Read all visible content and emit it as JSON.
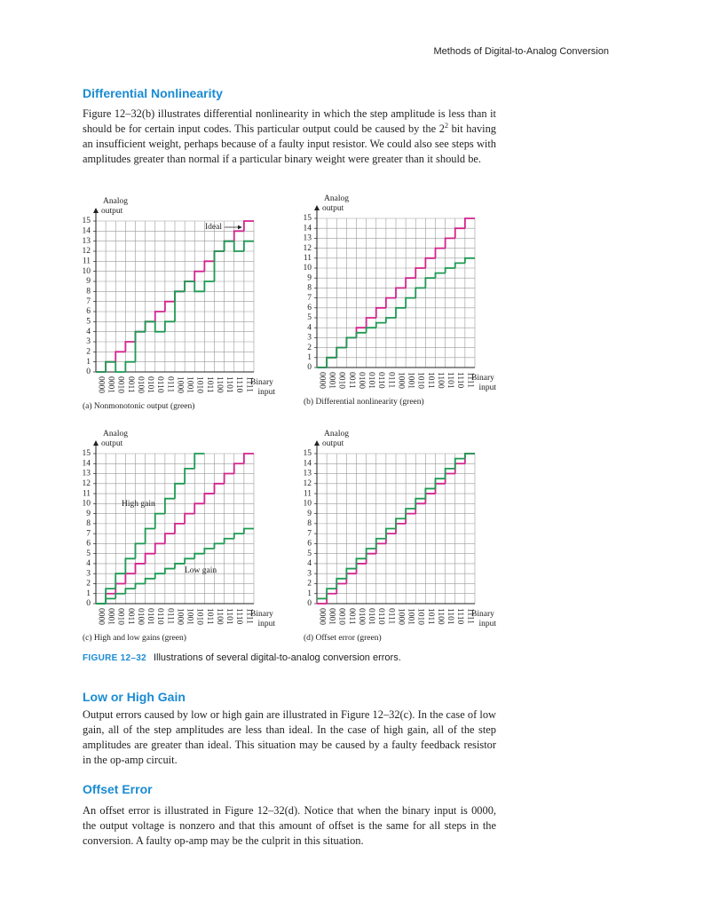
{
  "header": {
    "running_title": "Methods of Digital-to-Analog Conversion"
  },
  "sections": [
    {
      "heading": "Differential Nonlinearity",
      "paragraph": {
        "before": "Figure 12–32(b) illustrates differential nonlinearity in which the step amplitude is less than it should be for certain input codes. This particular output could be caused by the ",
        "base": "2",
        "sup": "2",
        "after": " bit having an insufficient weight, perhaps because of a faulty input resistor. We could also see steps with amplitudes greater than normal if a particular binary weight were greater than it should be."
      }
    },
    {
      "heading": "Low or High Gain",
      "paragraph": {
        "before": "Output errors caused by low or high gain are illustrated in Figure 12–32(c). In the case of low gain, all of the step amplitudes are less than ideal. In the case of high gain, all of the step amplitudes are greater than ideal. This situation may be caused by a faulty feedback resistor in the op-amp circuit."
      }
    },
    {
      "heading": "Offset Error",
      "paragraph": {
        "before": "An offset error is illustrated in Figure 12–32(d). Notice that when the binary input is 0000, the output voltage is nonzero and that this amount of offset is the same for all steps in the conversion. A faulty op-amp may be the culprit in this situation."
      }
    }
  ],
  "figure": {
    "label": "FIGURE 12–32",
    "caption": "Illustrations of several digital-to-analog conversion errors."
  },
  "chart_data": [
    {
      "type": "step",
      "title": "(a) Nonmonotonic output (green)",
      "ylabel": [
        "Analog",
        "output"
      ],
      "xlabel": [
        "Binary",
        "input"
      ],
      "categories": [
        "0000",
        "0001",
        "0010",
        "0011",
        "0100",
        "0101",
        "0110",
        "0111",
        "1000",
        "1001",
        "1010",
        "1011",
        "1100",
        "1101",
        "1110",
        "1111"
      ],
      "ylim": [
        0,
        15
      ],
      "yticks": [
        0,
        1,
        2,
        3,
        4,
        5,
        6,
        7,
        8,
        9,
        10,
        11,
        12,
        13,
        14,
        15
      ],
      "grid": true,
      "series": [
        {
          "color": "#d4238e",
          "values": [
            0,
            1,
            2,
            3,
            4,
            5,
            6,
            7,
            8,
            9,
            10,
            11,
            12,
            13,
            14,
            15
          ]
        },
        {
          "color": "#1d9a52",
          "values": [
            0,
            1,
            0,
            1,
            4,
            5,
            4,
            5,
            8,
            9,
            8,
            9,
            12,
            13,
            12,
            13
          ]
        }
      ],
      "annotations": [
        {
          "text": "Ideal"
        }
      ]
    },
    {
      "type": "step",
      "title": "(b) Differential nonlinearity (green)",
      "ylabel": [
        "Analog",
        "output"
      ],
      "xlabel": [
        "Binary",
        "input"
      ],
      "categories": [
        "0000",
        "0001",
        "0010",
        "0011",
        "0100",
        "0101",
        "0110",
        "0111",
        "1000",
        "1001",
        "1010",
        "1011",
        "1100",
        "1101",
        "1110",
        "1111"
      ],
      "ylim": [
        0,
        15
      ],
      "yticks": [
        0,
        1,
        2,
        3,
        4,
        5,
        6,
        7,
        8,
        9,
        10,
        11,
        12,
        13,
        14,
        15
      ],
      "grid": true,
      "series": [
        {
          "color": "#d4238e",
          "values": [
            0,
            1,
            2,
            3,
            4,
            5,
            6,
            7,
            8,
            9,
            10,
            11,
            12,
            13,
            14,
            15
          ]
        },
        {
          "color": "#1d9a52",
          "values": [
            0,
            1,
            2,
            3,
            3.5,
            4,
            4.5,
            5,
            6,
            7,
            8,
            9,
            9.5,
            10,
            10.5,
            11
          ]
        }
      ],
      "annotations": []
    },
    {
      "type": "step",
      "title": "(c) High and low gains (green)",
      "ylabel": [
        "Analog",
        "output"
      ],
      "xlabel": [
        "Binary",
        "input"
      ],
      "categories": [
        "0000",
        "0001",
        "0010",
        "0011",
        "0100",
        "0101",
        "0110",
        "0111",
        "1000",
        "1001",
        "1010",
        "1011",
        "1100",
        "1101",
        "1110",
        "1111"
      ],
      "ylim": [
        0,
        15
      ],
      "yticks": [
        0,
        1,
        2,
        3,
        4,
        5,
        6,
        7,
        8,
        9,
        10,
        11,
        12,
        13,
        14,
        15
      ],
      "grid": true,
      "series": [
        {
          "color": "#d4238e",
          "values": [
            0,
            1,
            2,
            3,
            4,
            5,
            6,
            7,
            8,
            9,
            10,
            11,
            12,
            13,
            14,
            15
          ]
        },
        {
          "color": "#1d9a52",
          "values": [
            0,
            1.5,
            3,
            4.5,
            6,
            7.5,
            9,
            10.5,
            12,
            13.5,
            15,
            null,
            null,
            null,
            null,
            null
          ]
        },
        {
          "color": "#1d9a52",
          "values": [
            0,
            0.5,
            1,
            1.5,
            2,
            2.5,
            3,
            3.5,
            4,
            4.5,
            5,
            5.5,
            6,
            6.5,
            7,
            7.5
          ]
        }
      ],
      "annotations": [
        {
          "text": "High gain"
        },
        {
          "text": "Low gain"
        }
      ]
    },
    {
      "type": "step",
      "title": "(d) Offset error (green)",
      "ylabel": [
        "Analog",
        "output"
      ],
      "xlabel": [
        "Binary",
        "input"
      ],
      "categories": [
        "0000",
        "0001",
        "0010",
        "0011",
        "0100",
        "0101",
        "0110",
        "0111",
        "1000",
        "1001",
        "1010",
        "1011",
        "1100",
        "1101",
        "1110",
        "1111"
      ],
      "ylim": [
        0,
        15
      ],
      "yticks": [
        0,
        1,
        2,
        3,
        4,
        5,
        6,
        7,
        8,
        9,
        10,
        11,
        12,
        13,
        14,
        15
      ],
      "grid": true,
      "series": [
        {
          "color": "#d4238e",
          "values": [
            0,
            1,
            2,
            3,
            4,
            5,
            6,
            7,
            8,
            9,
            10,
            11,
            12,
            13,
            14,
            15
          ]
        },
        {
          "color": "#1d9a52",
          "values": [
            0.5,
            1.5,
            2.5,
            3.5,
            4.5,
            5.5,
            6.5,
            7.5,
            8.5,
            9.5,
            10.5,
            11.5,
            12.5,
            13.5,
            14.5,
            15
          ]
        }
      ],
      "annotations": []
    }
  ]
}
